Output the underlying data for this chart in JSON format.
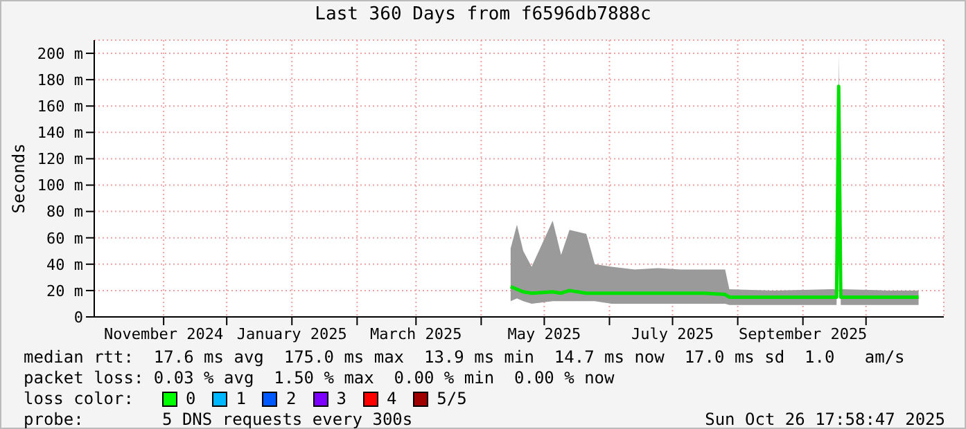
{
  "chart_data": {
    "type": "line",
    "title": "Last 360 Days from f6596db7888c",
    "ylabel": "Seconds",
    "x": [
      "2025-04-15",
      "2025-04-18",
      "2025-04-21",
      "2025-04-25",
      "2025-05-05",
      "2025-05-09",
      "2025-05-13",
      "2025-05-21",
      "2025-05-25",
      "2025-06-02",
      "2025-06-13",
      "2025-06-24",
      "2025-07-05",
      "2025-07-16",
      "2025-07-26",
      "2025-07-28",
      "2025-08-18",
      "2025-09-14",
      "2025-09-17",
      "2025-09-18",
      "2025-09-19",
      "2025-09-20",
      "2025-10-12",
      "2025-10-26"
    ],
    "series": [
      {
        "color": "#00e000",
        "values": [
          23,
          21,
          19,
          18,
          19,
          18,
          20,
          18,
          18,
          18,
          18,
          18,
          18,
          18,
          17,
          15,
          15,
          15,
          15,
          175,
          15,
          15,
          15,
          15
        ],
        "lower": [
          12,
          14,
          12,
          10,
          12,
          12,
          12,
          12,
          12,
          10,
          10,
          10,
          10,
          10,
          10,
          9,
          9,
          9,
          9,
          161,
          9,
          9,
          9,
          9
        ],
        "upper": [
          52,
          70,
          50,
          38,
          73,
          47,
          66,
          63,
          40,
          38,
          36,
          37,
          36,
          36,
          36,
          21,
          20,
          21,
          21,
          199,
          21,
          21,
          20,
          20
        ]
      }
    ],
    "xlim": [
      "2024-09-29",
      "2025-11-07"
    ],
    "xticks": [
      {
        "value": "2024-11-01",
        "label": "November 2024"
      },
      {
        "value": "2024-12-01",
        "label": null
      },
      {
        "value": "2025-01-01",
        "label": "January 2025"
      },
      {
        "value": "2025-02-01",
        "label": null
      },
      {
        "value": "2025-03-01",
        "label": "March 2025"
      },
      {
        "value": "2025-04-01",
        "label": null
      },
      {
        "value": "2025-05-01",
        "label": "May 2025"
      },
      {
        "value": "2025-06-01",
        "label": null
      },
      {
        "value": "2025-07-01",
        "label": "July 2025"
      },
      {
        "value": "2025-08-01",
        "label": null
      },
      {
        "value": "2025-09-01",
        "label": "September 2025"
      },
      {
        "value": "2025-10-01",
        "label": null
      }
    ],
    "ylim": [
      0,
      210
    ],
    "yticks": [
      0,
      {
        "value": 20,
        "label": "20 m"
      },
      {
        "value": 40,
        "label": "40 m"
      },
      {
        "value": 60,
        "label": "60 m"
      },
      {
        "value": 80,
        "label": "80 m"
      },
      {
        "value": 100,
        "label": "100 m"
      },
      {
        "value": 120,
        "label": "120 m"
      },
      {
        "value": 140,
        "label": "140 m"
      },
      {
        "value": 160,
        "label": "160 m"
      },
      {
        "value": 180,
        "label": "180 m"
      },
      {
        "value": 200,
        "label": "200 m"
      }
    ],
    "grid": true,
    "legend": false,
    "marker": "none",
    "line_style": "solid",
    "annotations": [
      "median rtt:  17.6 ms avg  175.0 ms max  13.9 ms min  14.7 ms now  17.0 ms sd  1.0   am/s",
      "packet loss: 0.03 % avg  1.50 % max  0.00 % min  0.00 % now",
      "loss color:",
      "0",
      "1",
      "2",
      "3",
      "4",
      "5/5",
      "probe:",
      "5 DNS requests every 300s",
      "Sun Oct 26 17:58:47 2025"
    ]
  }
}
